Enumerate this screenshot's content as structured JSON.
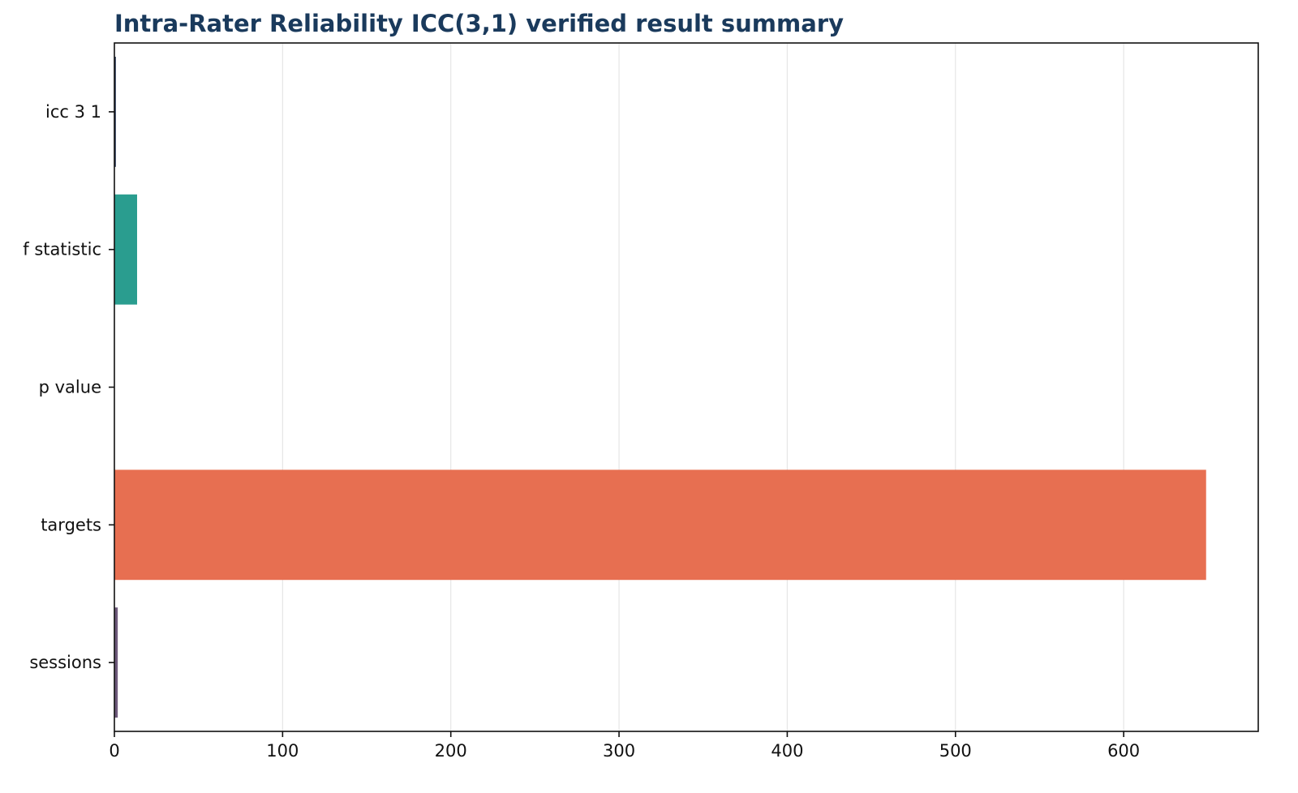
{
  "chart_data": {
    "type": "bar",
    "orientation": "horizontal",
    "title": "Intra-Rater Reliability ICC(3,1) verified result summary",
    "xlabel": "",
    "ylabel": "",
    "categories": [
      "icc 3 1",
      "f statistic",
      "p value",
      "targets",
      "sessions"
    ],
    "values": [
      0.86,
      13.5,
      0.0001,
      649,
      2
    ],
    "colors": [
      "#1b2a4a",
      "#2a9d8f",
      "#e9c46a",
      "#e76f51",
      "#6d597a"
    ],
    "xlim": [
      0,
      680
    ],
    "xticks": [
      0,
      100,
      200,
      300,
      400,
      500,
      600
    ],
    "grid": "x",
    "legend": "none"
  }
}
